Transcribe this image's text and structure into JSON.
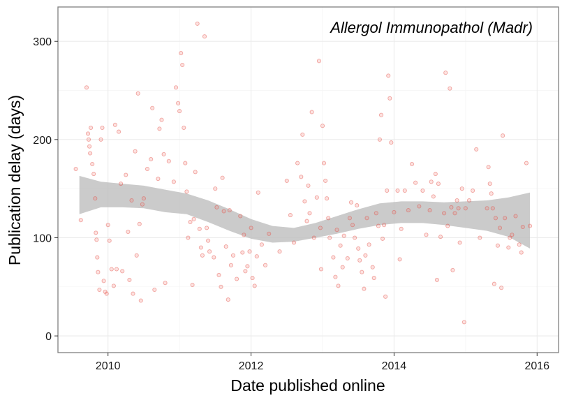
{
  "chart_data": {
    "type": "scatter",
    "title": "Allergol Immunopathol (Madr)",
    "xlabel": "Date published online",
    "ylabel": "Publication delay (days)",
    "xlim": [
      2009.3,
      2016.3
    ],
    "ylim": [
      -17,
      335
    ],
    "x_ticks": [
      2010,
      2012,
      2014,
      2016
    ],
    "x_tick_labels": [
      "2010",
      "2012",
      "2014",
      "2016"
    ],
    "y_ticks": [
      0,
      100,
      200,
      300
    ],
    "y_tick_labels": [
      "0",
      "100",
      "200",
      "300"
    ],
    "grid": true,
    "legend": "none",
    "colors": {
      "point_fill": "#F8766D",
      "point_stroke": "#E0483E",
      "ribbon": "#BEBEBE",
      "panel_border": "#7f7f7f",
      "grid_major": "#ebebeb",
      "grid_minor": "#f5f5f5"
    },
    "smooth": {
      "method": "loess",
      "x": [
        2009.6,
        2009.9,
        2010.2,
        2010.5,
        2010.8,
        2011.1,
        2011.4,
        2011.7,
        2012.0,
        2012.3,
        2012.6,
        2012.9,
        2013.2,
        2013.5,
        2013.8,
        2014.1,
        2014.4,
        2014.7,
        2015.0,
        2015.3,
        2015.6,
        2015.9
      ],
      "lower": [
        124,
        131,
        131,
        130,
        126,
        124,
        116,
        107,
        99,
        95,
        96,
        100,
        104,
        109,
        113,
        115,
        115,
        113,
        110,
        107,
        101,
        89
      ],
      "upper": [
        163,
        157,
        155,
        153,
        149,
        145,
        138,
        129,
        119,
        112,
        110,
        115,
        122,
        129,
        135,
        137,
        137,
        136,
        137,
        138,
        141,
        146
      ]
    },
    "series": [
      {
        "name": "articles",
        "points": [
          [
            2009.55,
            170
          ],
          [
            2009.62,
            118
          ],
          [
            2009.7,
            253
          ],
          [
            2009.72,
            206
          ],
          [
            2009.73,
            200
          ],
          [
            2009.74,
            193
          ],
          [
            2009.75,
            186
          ],
          [
            2009.76,
            212
          ],
          [
            2009.78,
            175
          ],
          [
            2009.8,
            165
          ],
          [
            2009.82,
            140
          ],
          [
            2009.83,
            105
          ],
          [
            2009.84,
            98
          ],
          [
            2009.85,
            80
          ],
          [
            2009.86,
            65
          ],
          [
            2009.88,
            47
          ],
          [
            2009.9,
            200
          ],
          [
            2009.92,
            212
          ],
          [
            2009.94,
            56
          ],
          [
            2009.96,
            45
          ],
          [
            2009.98,
            43
          ],
          [
            2010.0,
            113
          ],
          [
            2010.02,
            97
          ],
          [
            2010.05,
            68
          ],
          [
            2010.08,
            51
          ],
          [
            2010.1,
            215
          ],
          [
            2010.12,
            68
          ],
          [
            2010.15,
            208
          ],
          [
            2010.18,
            155
          ],
          [
            2010.2,
            66
          ],
          [
            2010.25,
            164
          ],
          [
            2010.28,
            106
          ],
          [
            2010.3,
            57
          ],
          [
            2010.33,
            138
          ],
          [
            2010.35,
            43
          ],
          [
            2010.38,
            188
          ],
          [
            2010.4,
            82
          ],
          [
            2010.42,
            247
          ],
          [
            2010.44,
            114
          ],
          [
            2010.46,
            36
          ],
          [
            2010.48,
            134
          ],
          [
            2010.5,
            140
          ],
          [
            2010.55,
            170
          ],
          [
            2010.6,
            180
          ],
          [
            2010.62,
            232
          ],
          [
            2010.65,
            47
          ],
          [
            2010.7,
            160
          ],
          [
            2010.72,
            211
          ],
          [
            2010.75,
            220
          ],
          [
            2010.78,
            185
          ],
          [
            2010.8,
            54
          ],
          [
            2010.85,
            178
          ],
          [
            2010.92,
            157
          ],
          [
            2010.95,
            253
          ],
          [
            2010.98,
            237
          ],
          [
            2011.0,
            229
          ],
          [
            2011.02,
            288
          ],
          [
            2011.04,
            276
          ],
          [
            2011.06,
            212
          ],
          [
            2011.08,
            176
          ],
          [
            2011.1,
            147
          ],
          [
            2011.12,
            100
          ],
          [
            2011.15,
            116
          ],
          [
            2011.18,
            52
          ],
          [
            2011.2,
            119
          ],
          [
            2011.22,
            167
          ],
          [
            2011.25,
            318
          ],
          [
            2011.28,
            109
          ],
          [
            2011.3,
            90
          ],
          [
            2011.32,
            82
          ],
          [
            2011.35,
            305
          ],
          [
            2011.38,
            110
          ],
          [
            2011.4,
            97
          ],
          [
            2011.42,
            86
          ],
          [
            2011.48,
            80
          ],
          [
            2011.5,
            150
          ],
          [
            2011.52,
            131
          ],
          [
            2011.55,
            62
          ],
          [
            2011.58,
            50
          ],
          [
            2011.6,
            161
          ],
          [
            2011.62,
            127
          ],
          [
            2011.65,
            91
          ],
          [
            2011.68,
            37
          ],
          [
            2011.7,
            128
          ],
          [
            2011.72,
            72
          ],
          [
            2011.75,
            82
          ],
          [
            2011.8,
            58
          ],
          [
            2011.85,
            122
          ],
          [
            2011.88,
            85
          ],
          [
            2011.9,
            103
          ],
          [
            2011.92,
            66
          ],
          [
            2011.95,
            71
          ],
          [
            2011.98,
            86
          ],
          [
            2012.0,
            110
          ],
          [
            2012.02,
            59
          ],
          [
            2012.05,
            51
          ],
          [
            2012.08,
            81
          ],
          [
            2012.1,
            146
          ],
          [
            2012.15,
            93
          ],
          [
            2012.2,
            72
          ],
          [
            2012.25,
            104
          ],
          [
            2012.4,
            86
          ],
          [
            2012.5,
            158
          ],
          [
            2012.55,
            123
          ],
          [
            2012.6,
            95
          ],
          [
            2012.65,
            176
          ],
          [
            2012.7,
            162
          ],
          [
            2012.72,
            205
          ],
          [
            2012.75,
            137
          ],
          [
            2012.78,
            117
          ],
          [
            2012.8,
            153
          ],
          [
            2012.82,
            125
          ],
          [
            2012.85,
            228
          ],
          [
            2012.88,
            100
          ],
          [
            2012.92,
            141
          ],
          [
            2012.95,
            280
          ],
          [
            2012.97,
            110
          ],
          [
            2012.98,
            68
          ],
          [
            2013.0,
            214
          ],
          [
            2013.02,
            176
          ],
          [
            2013.04,
            158
          ],
          [
            2013.06,
            140
          ],
          [
            2013.08,
            120
          ],
          [
            2013.1,
            100
          ],
          [
            2013.15,
            80
          ],
          [
            2013.18,
            60
          ],
          [
            2013.2,
            108
          ],
          [
            2013.22,
            51
          ],
          [
            2013.25,
            92
          ],
          [
            2013.28,
            70
          ],
          [
            2013.3,
            102
          ],
          [
            2013.35,
            79
          ],
          [
            2013.38,
            120
          ],
          [
            2013.4,
            136
          ],
          [
            2013.42,
            113
          ],
          [
            2013.45,
            100
          ],
          [
            2013.48,
            133
          ],
          [
            2013.5,
            89
          ],
          [
            2013.52,
            77
          ],
          [
            2013.55,
            65
          ],
          [
            2013.58,
            48
          ],
          [
            2013.6,
            82
          ],
          [
            2013.62,
            120
          ],
          [
            2013.65,
            93
          ],
          [
            2013.7,
            70
          ],
          [
            2013.72,
            59
          ],
          [
            2013.75,
            125
          ],
          [
            2013.78,
            112
          ],
          [
            2013.8,
            200
          ],
          [
            2013.82,
            225
          ],
          [
            2013.84,
            99
          ],
          [
            2013.86,
            113
          ],
          [
            2013.88,
            40
          ],
          [
            2013.9,
            148
          ],
          [
            2013.92,
            265
          ],
          [
            2013.94,
            242
          ],
          [
            2013.96,
            197
          ],
          [
            2014.0,
            126
          ],
          [
            2014.05,
            148
          ],
          [
            2014.08,
            78
          ],
          [
            2014.1,
            109
          ],
          [
            2014.15,
            148
          ],
          [
            2014.2,
            128
          ],
          [
            2014.25,
            175
          ],
          [
            2014.3,
            156
          ],
          [
            2014.35,
            132
          ],
          [
            2014.4,
            148
          ],
          [
            2014.45,
            103
          ],
          [
            2014.5,
            128
          ],
          [
            2014.52,
            157
          ],
          [
            2014.55,
            142
          ],
          [
            2014.58,
            165
          ],
          [
            2014.6,
            57
          ],
          [
            2014.62,
            155
          ],
          [
            2014.65,
            101
          ],
          [
            2014.7,
            125
          ],
          [
            2014.72,
            268
          ],
          [
            2014.75,
            112
          ],
          [
            2014.78,
            252
          ],
          [
            2014.8,
            131
          ],
          [
            2014.82,
            67
          ],
          [
            2014.85,
            125
          ],
          [
            2014.88,
            138
          ],
          [
            2014.9,
            130
          ],
          [
            2014.92,
            95
          ],
          [
            2014.95,
            150
          ],
          [
            2014.98,
            14
          ],
          [
            2015.0,
            130
          ],
          [
            2015.05,
            138
          ],
          [
            2015.1,
            148
          ],
          [
            2015.15,
            190
          ],
          [
            2015.2,
            100
          ],
          [
            2015.3,
            130
          ],
          [
            2015.32,
            172
          ],
          [
            2015.34,
            155
          ],
          [
            2015.36,
            145
          ],
          [
            2015.38,
            130
          ],
          [
            2015.4,
            53
          ],
          [
            2015.42,
            120
          ],
          [
            2015.45,
            92
          ],
          [
            2015.48,
            110
          ],
          [
            2015.5,
            49
          ],
          [
            2015.52,
            204
          ],
          [
            2015.55,
            120
          ],
          [
            2015.6,
            90
          ],
          [
            2015.62,
            100
          ],
          [
            2015.65,
            103
          ],
          [
            2015.7,
            122
          ],
          [
            2015.75,
            93
          ],
          [
            2015.78,
            85
          ],
          [
            2015.8,
            111
          ],
          [
            2015.85,
            176
          ],
          [
            2015.9,
            112
          ]
        ]
      }
    ]
  }
}
